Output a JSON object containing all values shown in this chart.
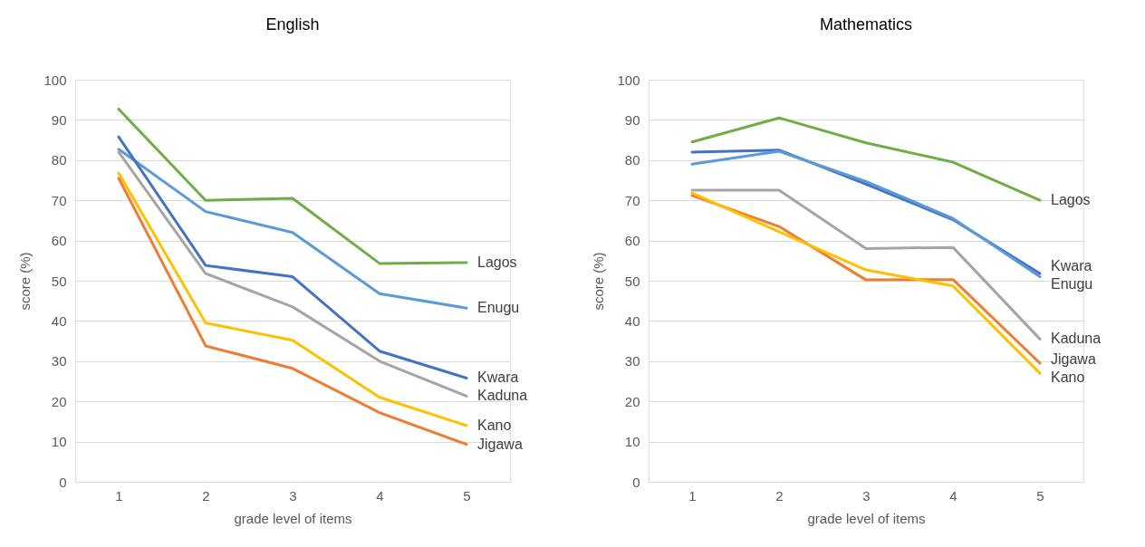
{
  "chart_data": [
    {
      "type": "line",
      "title": "English",
      "xlabel": "grade level of items",
      "ylabel": "score (%)",
      "categories": [
        "1",
        "2",
        "3",
        "4",
        "5"
      ],
      "ylim": [
        0,
        100
      ],
      "yticks": [
        0,
        10,
        20,
        30,
        40,
        50,
        60,
        70,
        80,
        90,
        100
      ],
      "grid": "y",
      "line_style": "solid",
      "series": [
        {
          "name": "Lagos",
          "color": "#70ad47",
          "values": [
            92.7,
            70,
            70.5,
            54.3,
            54.5
          ]
        },
        {
          "name": "Enugu",
          "color": "#5b9bd5",
          "values": [
            82.7,
            67.2,
            62,
            46.8,
            43.2
          ]
        },
        {
          "name": "Kwara",
          "color": "#4472c4",
          "values": [
            85.8,
            53.8,
            51,
            32.5,
            25.8
          ]
        },
        {
          "name": "Kaduna",
          "color": "#a5a5a5",
          "values": [
            82,
            51.8,
            43.5,
            30,
            21.3
          ]
        },
        {
          "name": "Kano",
          "color": "#ffc000",
          "values": [
            76.8,
            39.5,
            35.2,
            21,
            14
          ]
        },
        {
          "name": "Jigawa",
          "color": "#ed7d31",
          "values": [
            75.5,
            33.8,
            28.2,
            17.2,
            9.3
          ]
        }
      ]
    },
    {
      "type": "line",
      "title": "Mathematics",
      "xlabel": "grade level of items",
      "ylabel": "score (%)",
      "categories": [
        "1",
        "2",
        "3",
        "4",
        "5"
      ],
      "ylim": [
        0,
        100
      ],
      "yticks": [
        0,
        10,
        20,
        30,
        40,
        50,
        60,
        70,
        80,
        90,
        100
      ],
      "grid": "y",
      "line_style": "solid",
      "series": [
        {
          "name": "Lagos",
          "color": "#70ad47",
          "values": [
            84.5,
            90.5,
            84.3,
            79.5,
            70
          ]
        },
        {
          "name": "Kwara",
          "color": "#4472c4",
          "values": [
            82,
            82.5,
            74,
            65.2,
            51.8
          ]
        },
        {
          "name": "Enugu",
          "color": "#5b9bd5",
          "values": [
            79,
            82.2,
            74.7,
            65.5,
            51
          ]
        },
        {
          "name": "Kaduna",
          "color": "#a5a5a5",
          "values": [
            72.5,
            72.5,
            58,
            58.3,
            35.5
          ]
        },
        {
          "name": "Jigawa",
          "color": "#ed7d31",
          "values": [
            71.2,
            63.5,
            50.2,
            50.3,
            29.5
          ]
        },
        {
          "name": "Kano",
          "color": "#ffc000",
          "values": [
            71.8,
            62.2,
            52.7,
            48.7,
            27
          ]
        }
      ]
    }
  ]
}
